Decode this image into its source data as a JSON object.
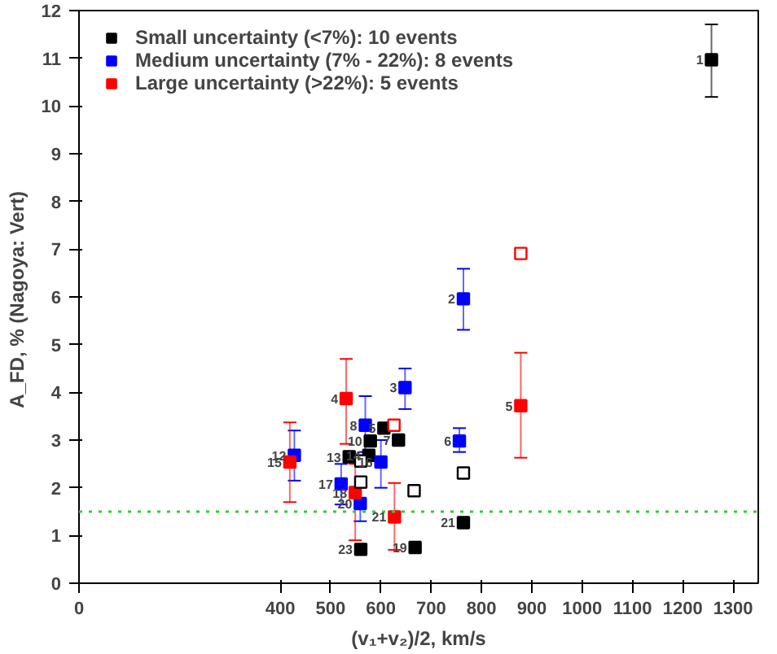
{
  "chart_data": {
    "type": "scatter",
    "xlabel": "(v₁+v₂)/2, km/s",
    "ylabel": "A_FD, %  (Nagoya: Vert)",
    "xlim": [
      0,
      1350
    ],
    "ylim": [
      0,
      12
    ],
    "xticks": [
      0,
      400,
      500,
      600,
      700,
      800,
      900,
      1000,
      1100,
      1200,
      1300
    ],
    "yticks": [
      0,
      1,
      2,
      3,
      4,
      5,
      6,
      7,
      8,
      9,
      10,
      11,
      12
    ],
    "grid": false,
    "legend": "top left",
    "marker": "square",
    "series": [
      {
        "name": "Small uncertainty (<7%): 10 events",
        "color": "#000000",
        "x": [
          1257,
          606,
          635,
          537,
          579,
          576,
          764,
          560,
          668
        ],
        "values": [
          10.97,
          3.25,
          3.0,
          2.65,
          2.98,
          2.68,
          1.27,
          0.71,
          0.75
        ],
        "errors": [
          [
            10.19,
            11.71
          ],
          null,
          null,
          null,
          null,
          null,
          null,
          null,
          null
        ]
      },
      {
        "name": "Medium uncertainty (7% - 22%): 8 events",
        "color": "#0000ff",
        "x": [
          764,
          648,
          569,
          756,
          428,
          600,
          521,
          559
        ],
        "values": [
          5.96,
          4.1,
          3.31,
          2.98,
          2.68,
          2.54,
          2.08,
          1.67
        ],
        "errors": [
          [
            5.31,
            6.59
          ],
          [
            3.65,
            4.5
          ],
          [
            2.75,
            3.92
          ],
          [
            2.75,
            3.25
          ],
          [
            2.15,
            3.2
          ],
          [
            2.0,
            3.0
          ],
          [
            1.65,
            2.5
          ],
          [
            1.3,
            2.0
          ]
        ]
      },
      {
        "name": "Large uncertainty (>22%): 5 events",
        "color": "#ff0000",
        "x": [
          531,
          878,
          419,
          549,
          627
        ],
        "values": [
          3.87,
          3.72,
          2.54,
          1.9,
          1.39
        ],
        "errors": [
          [
            2.92,
            4.7
          ],
          [
            2.63,
            4.83
          ],
          [
            1.7,
            3.37
          ],
          [
            0.9,
            2.5
          ],
          [
            0.7,
            2.1
          ]
        ]
      },
      {
        "color": "#000000",
        "x": [
          560,
          560,
          666,
          764
        ],
        "values": [
          2.56,
          2.12,
          1.94,
          2.31
        ]
      },
      {
        "color": "#ff0000",
        "x": [
          626,
          878
        ],
        "values": [
          3.31,
          6.91
        ]
      }
    ],
    "ref_lines": [
      {
        "axis": "y",
        "value": 1.5,
        "color": "#33cc33",
        "line_style": "dotted"
      }
    ],
    "annotations": [
      {
        "text": "1",
        "x": 1257,
        "y": 10.97
      },
      {
        "text": "5",
        "x": 606,
        "y": 3.25
      },
      {
        "text": "7",
        "x": 635,
        "y": 3.0
      },
      {
        "text": "13",
        "x": 537,
        "y": 2.65
      },
      {
        "text": "10",
        "x": 579,
        "y": 2.98
      },
      {
        "text": "14",
        "x": 576,
        "y": 2.68
      },
      {
        "text": "21",
        "x": 764,
        "y": 1.27
      },
      {
        "text": "23",
        "x": 560,
        "y": 0.71
      },
      {
        "text": "19",
        "x": 668,
        "y": 0.75
      },
      {
        "text": "2",
        "x": 764,
        "y": 5.96
      },
      {
        "text": "3",
        "x": 648,
        "y": 4.1
      },
      {
        "text": "8",
        "x": 569,
        "y": 3.31
      },
      {
        "text": "6",
        "x": 756,
        "y": 2.98
      },
      {
        "text": "12",
        "x": 428,
        "y": 2.68
      },
      {
        "text": "16",
        "x": 600,
        "y": 2.54
      },
      {
        "text": "17",
        "x": 521,
        "y": 2.08
      },
      {
        "text": "20",
        "x": 559,
        "y": 1.67
      },
      {
        "text": "4",
        "x": 531,
        "y": 3.87
      },
      {
        "text": "5",
        "x": 878,
        "y": 3.72
      },
      {
        "text": "15",
        "x": 419,
        "y": 2.54
      },
      {
        "text": "18",
        "x": 549,
        "y": 1.9
      },
      {
        "text": "21",
        "x": 627,
        "y": 1.39
      }
    ]
  }
}
